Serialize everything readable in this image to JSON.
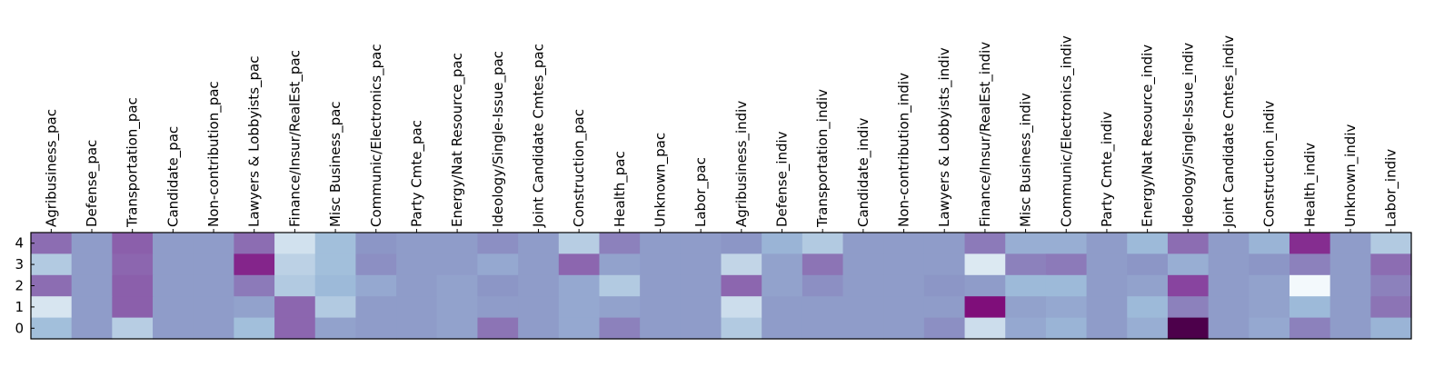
{
  "chart_data": {
    "type": "heatmap",
    "title": "",
    "xlabel": "",
    "ylabel": "",
    "colormap": "BuPu",
    "x_labels": [
      "Agribusiness_pac",
      "Defense_pac",
      "Transportation_pac",
      "Candidate_pac",
      "Non-contribution_pac",
      "Lawyers & Lobbyists_pac",
      "Finance/Insur/RealEst_pac",
      "Misc Business_pac",
      "Communic/Electronics_pac",
      "Party Cmte_pac",
      "Energy/Nat Resource_pac",
      "Ideology/Single-Issue_pac",
      "Joint Candidate Cmtes_pac",
      "Construction_pac",
      "Health_pac",
      "Unknown_pac",
      "Labor_pac",
      "Agribusiness_indiv",
      "Defense_indiv",
      "Transportation_indiv",
      "Candidate_indiv",
      "Non-contribution_indiv",
      "Lawyers & Lobbyists_indiv",
      "Finance/Insur/RealEst_indiv",
      "Misc Business_indiv",
      "Communic/Electronics_indiv",
      "Party Cmte_indiv",
      "Energy/Nat Resource_indiv",
      "Ideology/Single-Issue_indiv",
      "Joint Candidate Cmtes_indiv",
      "Construction_indiv",
      "Health_indiv",
      "Unknown_indiv",
      "Labor_indiv"
    ],
    "y_labels": [
      "4",
      "3",
      "2",
      "1",
      "0"
    ],
    "values": [
      [
        0.62,
        0.48,
        0.66,
        0.48,
        0.48,
        0.62,
        0.18,
        0.36,
        0.5,
        0.48,
        0.48,
        0.52,
        0.48,
        0.28,
        0.56,
        0.48,
        0.48,
        0.5,
        0.4,
        0.3,
        0.48,
        0.48,
        0.48,
        0.58,
        0.42,
        0.42,
        0.48,
        0.38,
        0.62,
        0.48,
        0.4,
        0.8,
        0.48,
        0.3
      ],
      [
        0.3,
        0.48,
        0.64,
        0.48,
        0.48,
        0.82,
        0.26,
        0.36,
        0.52,
        0.48,
        0.48,
        0.44,
        0.48,
        0.64,
        0.46,
        0.48,
        0.48,
        0.24,
        0.46,
        0.6,
        0.48,
        0.48,
        0.48,
        0.14,
        0.56,
        0.58,
        0.48,
        0.5,
        0.42,
        0.48,
        0.5,
        0.56,
        0.48,
        0.62
      ],
      [
        0.62,
        0.48,
        0.66,
        0.48,
        0.48,
        0.58,
        0.3,
        0.38,
        0.44,
        0.48,
        0.46,
        0.5,
        0.48,
        0.44,
        0.3,
        0.48,
        0.48,
        0.64,
        0.46,
        0.52,
        0.48,
        0.48,
        0.5,
        0.48,
        0.38,
        0.38,
        0.48,
        0.46,
        0.74,
        0.48,
        0.46,
        0.02,
        0.48,
        0.56
      ],
      [
        0.16,
        0.48,
        0.66,
        0.48,
        0.48,
        0.46,
        0.64,
        0.3,
        0.48,
        0.48,
        0.46,
        0.48,
        0.48,
        0.44,
        0.46,
        0.48,
        0.48,
        0.2,
        0.48,
        0.48,
        0.48,
        0.48,
        0.48,
        0.88,
        0.46,
        0.44,
        0.48,
        0.38,
        0.56,
        0.48,
        0.46,
        0.38,
        0.48,
        0.6
      ],
      [
        0.36,
        0.48,
        0.28,
        0.48,
        0.48,
        0.36,
        0.64,
        0.46,
        0.48,
        0.48,
        0.46,
        0.6,
        0.48,
        0.44,
        0.56,
        0.48,
        0.48,
        0.3,
        0.48,
        0.48,
        0.48,
        0.48,
        0.52,
        0.2,
        0.44,
        0.4,
        0.48,
        0.42,
        1.0,
        0.48,
        0.44,
        0.56,
        0.48,
        0.4
      ]
    ],
    "grid": false,
    "legend": "none"
  }
}
